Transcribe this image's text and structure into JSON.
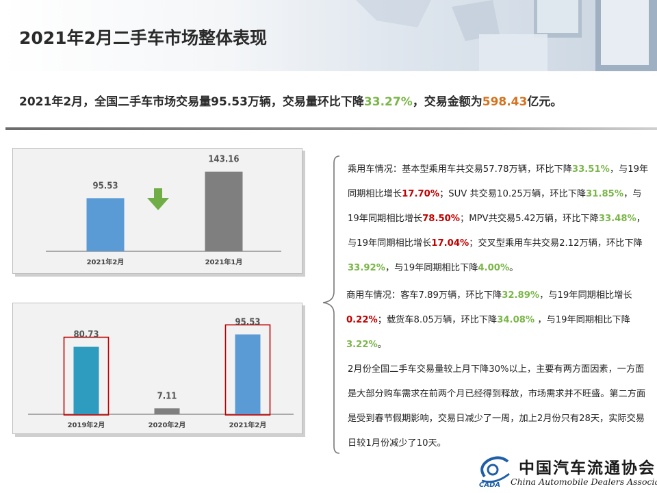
{
  "page": {
    "title": "2021年2月二手车市场整体表现"
  },
  "summary": {
    "prefix": "2021年2月，全国二手车市场交易量95.53万辆，交易量环比下降",
    "mom_decline": "33.27%",
    "middle": "，交易金额为",
    "amount": "598.43",
    "suffix": "亿元。"
  },
  "chart_data": [
    {
      "type": "bar",
      "categories": [
        "2021年2月",
        "2021年1月"
      ],
      "values": [
        95.53,
        143.16
      ],
      "value_labels": [
        "95.53",
        "143.16"
      ],
      "colors": [
        "#5b9bd5",
        "#7f7f7f"
      ],
      "annotation": "down-arrow-icon",
      "ylim": [
        0,
        160
      ]
    },
    {
      "type": "bar",
      "categories": [
        "2019年2月",
        "2020年2月",
        "2021年2月"
      ],
      "values": [
        80.73,
        7.11,
        95.53
      ],
      "value_labels": [
        "80.73",
        "7.11",
        "95.53"
      ],
      "colors": [
        "#2e9cbf",
        "#7f7f7f",
        "#5b9bd5"
      ],
      "highlighted": [
        "2019年2月",
        "2021年2月"
      ],
      "ylim": [
        0,
        100
      ]
    }
  ],
  "notes": {
    "passenger": [
      {
        "t": "乘用车情况：基本型乘用车共交易57.78万辆，环比下降",
        "c": ""
      },
      {
        "t": "33.51%",
        "c": "g"
      },
      {
        "t": "，与19年同期相比增长",
        "c": ""
      },
      {
        "t": "17.70%",
        "c": "r"
      },
      {
        "t": "；SUV 共交易10.25万辆，环比下降",
        "c": ""
      },
      {
        "t": "31.85%",
        "c": "g"
      },
      {
        "t": "，与19年同期相比增长",
        "c": ""
      },
      {
        "t": "78.50%",
        "c": "r"
      },
      {
        "t": "；MPV共交易5.42万辆，环比下降",
        "c": ""
      },
      {
        "t": "33.48%",
        "c": "g"
      },
      {
        "t": "，与19年同期相比增长",
        "c": ""
      },
      {
        "t": "17.04%",
        "c": "r"
      },
      {
        "t": "；交叉型乘用车共交易2.12万辆，环比下降",
        "c": ""
      },
      {
        "t": "33.92%",
        "c": "g"
      },
      {
        "t": "，与19年同期相比下降",
        "c": ""
      },
      {
        "t": "4.00%",
        "c": "g"
      },
      {
        "t": "。",
        "c": ""
      }
    ],
    "commercial": [
      {
        "t": "商用车情况：客车7.89万辆，环比下降",
        "c": ""
      },
      {
        "t": "32.89%",
        "c": "g"
      },
      {
        "t": "，与19年同期相比增长",
        "c": ""
      },
      {
        "t": "0.22%",
        "c": "r"
      },
      {
        "t": "；载货车8.05万辆，环比下降",
        "c": ""
      },
      {
        "t": "34.08%",
        "c": "g"
      },
      {
        "t": " ，与19年同期相比下降",
        "c": ""
      },
      {
        "t": "3.22%",
        "c": "g"
      },
      {
        "t": "。",
        "c": ""
      }
    ],
    "analysis": "2月份全国二手车交易量较上月下降30%以上，主要有两方面因素，一方面是大部分购车需求在前两个月已经得到释放，市场需求并不旺盛。第二方面是受到春节假期影响，交易日减少了一周，加上2月份只有28天，实际交易日较1月份减少了10天。"
  },
  "logo": {
    "abbr": "CADA",
    "name_cn": "中国汽车流通协会",
    "name_en": "China Automobile Dealers Association"
  },
  "colors": {
    "green": "#7ab648",
    "orange": "#d4731f",
    "red": "#c00000",
    "highlight_box": "#c00000"
  }
}
